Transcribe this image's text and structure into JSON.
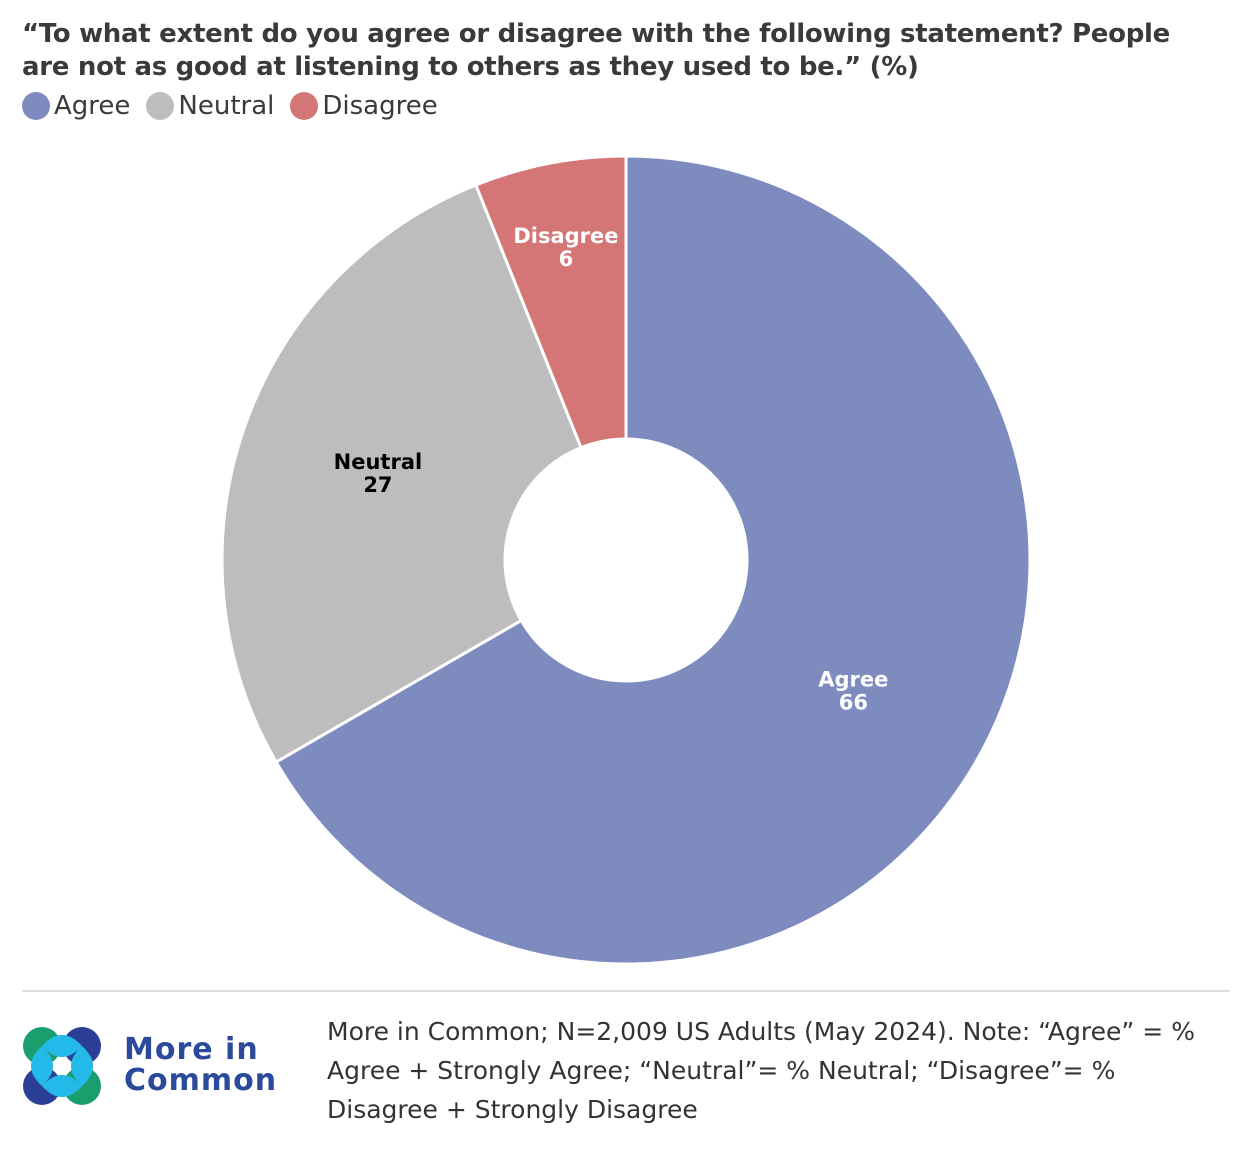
{
  "chart_data": {
    "type": "pie",
    "donut": true,
    "title": "“To what extent do you agree or disagree with the following statement? People are not as good at listening to others as they used to be.” (%)",
    "legend_position": "top-left",
    "categories": [
      "Agree",
      "Neutral",
      "Disagree"
    ],
    "values": [
      66,
      27,
      6
    ],
    "colors": [
      "#7e8bbf",
      "#bdbdbd",
      "#d47676"
    ],
    "label_colors": [
      "#ffffff",
      "#000000",
      "#ffffff"
    ]
  },
  "footer": {
    "brand_line1": "More in",
    "brand_line2": "Common",
    "source": "More in Common; N=2,009 US Adults (May 2024). Note: “Agree” = % Agree + Strongly Agree; “Neutral”= % Neutral; “Disagree”= % Disagree + Strongly Disagree"
  },
  "logo": {
    "icon": "more-in-common-logo-icon",
    "colors": [
      "#1a9e6e",
      "#2b3f96",
      "#23b9e8"
    ]
  }
}
